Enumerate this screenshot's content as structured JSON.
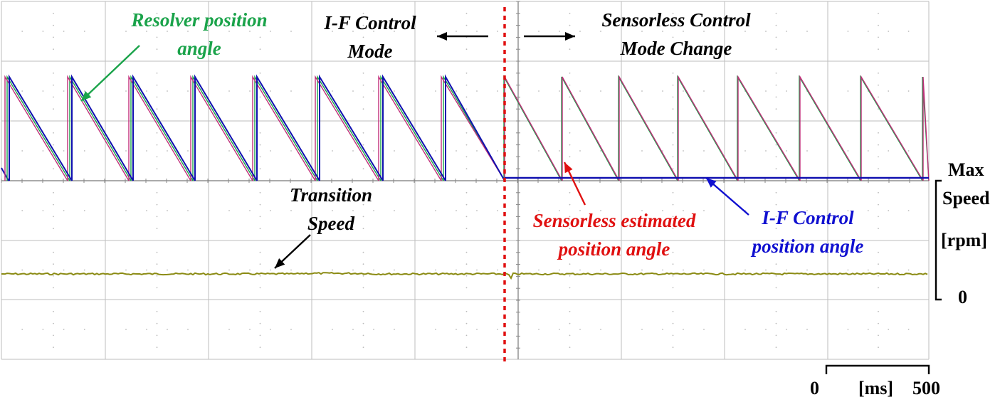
{
  "annotations": {
    "resolver": [
      "Resolver position",
      "angle"
    ],
    "if_mode": [
      "I-F Control",
      "Mode"
    ],
    "sensorless_change": [
      "Sensorless Control",
      "Mode Change"
    ],
    "transition": [
      "Transition",
      "Speed"
    ],
    "sensorless_est": [
      "Sensorless estimated",
      "position angle"
    ],
    "if_angle": [
      "I-F Control",
      "position angle"
    ]
  },
  "speed_axis": {
    "max_line1": "Max",
    "max_line2": "Speed",
    "unit": "[rpm]",
    "zero": "0"
  },
  "time_scale": {
    "start": "0",
    "unit": "[ms]",
    "end": "500"
  },
  "colors": {
    "resolver": "#1aa34a",
    "if_angle": "#1010b0",
    "sensorless": "#c0307a",
    "speed": "#8b8b14",
    "mode_change": "#e01010",
    "annotation_green": "#1aa34a",
    "annotation_red": "#e01010",
    "annotation_blue": "#1010d0"
  },
  "chart_data": {
    "type": "line",
    "grid": true,
    "x": {
      "unit": "ms",
      "scale_bar": [
        0,
        500
      ]
    },
    "y_speed": {
      "unit": "rpm",
      "range_labels": [
        "0",
        "Max Speed"
      ]
    },
    "series": [
      {
        "name": "Resolver position angle",
        "shape": "sawtooth",
        "cycles_if_mode": 7.5,
        "cycles_sensorless": 7
      },
      {
        "name": "I-F Control position angle",
        "shape": "sawtooth in I-F mode, constant zero after mode change"
      },
      {
        "name": "Sensorless estimated position angle",
        "shape": "sawtooth tracking resolver"
      },
      {
        "name": "Transition Speed",
        "shape": "constant",
        "level_fraction_of_max": 0.2
      }
    ],
    "events": [
      {
        "name": "Sensorless Control Mode Change"
      }
    ]
  }
}
